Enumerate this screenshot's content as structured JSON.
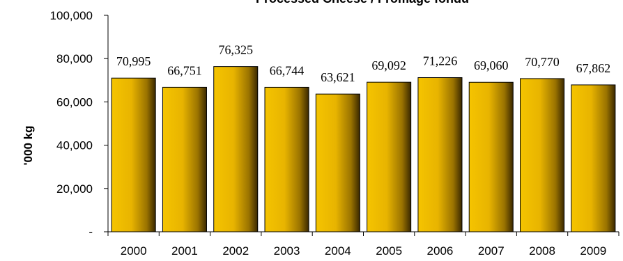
{
  "chart_data": {
    "type": "bar",
    "title": "Processed Cheese / Fromage fondu",
    "xlabel": "",
    "ylabel": "'000 kg",
    "categories": [
      "2000",
      "2001",
      "2002",
      "2003",
      "2004",
      "2005",
      "2006",
      "2007",
      "2008",
      "2009"
    ],
    "values": [
      70995,
      66751,
      76325,
      66744,
      63621,
      69092,
      71226,
      69060,
      70770,
      67862
    ],
    "data_labels": [
      "70,995",
      "66,751",
      "76,325",
      "66,744",
      "63,621",
      "69,092",
      "71,226",
      "69,060",
      "70,770",
      "67,862"
    ],
    "ylim": [
      0,
      100000
    ],
    "y_ticks": [
      0,
      20000,
      40000,
      60000,
      80000,
      100000
    ],
    "y_tick_labels": [
      "-",
      "20,000",
      "40,000",
      "60,000",
      "80,000",
      "100,000"
    ],
    "grid": false,
    "legend": "none",
    "colors": {
      "bar_light": "#F5C400",
      "bar_mid": "#E8B400",
      "bar_dark": "#3A2800",
      "bar_outline": "#000000"
    }
  }
}
